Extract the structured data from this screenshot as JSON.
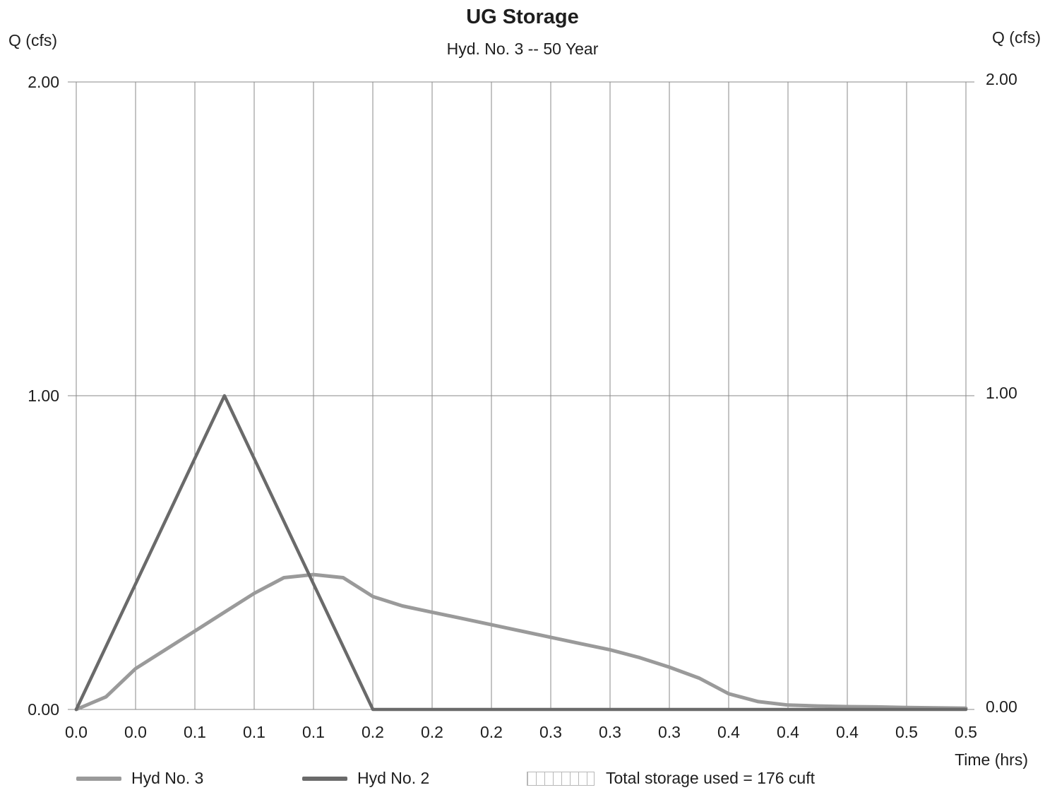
{
  "chart_data": {
    "type": "line",
    "title": "UG Storage",
    "subtitle": "Hyd. No. 3 -- 50 Year",
    "ylabel": "Q (cfs)",
    "ylabel_right": "Q (cfs)",
    "xlabel": "Time (hrs)",
    "ylim": [
      0,
      2
    ],
    "xlim": [
      0,
      0.5
    ],
    "y_ticks": [
      "0.00",
      "1.00",
      "2.00"
    ],
    "x_tick_labels": [
      "0.0",
      "0.0",
      "0.1",
      "0.1",
      "0.1",
      "0.2",
      "0.2",
      "0.2",
      "0.3",
      "0.3",
      "0.3",
      "0.4",
      "0.4",
      "0.4",
      "0.5",
      "0.5"
    ],
    "grid": true,
    "legend_position": "bottom",
    "series": [
      {
        "name": "Hyd No. 3",
        "color": "#9a9a9a",
        "x": [
          0.0,
          0.0167,
          0.0333,
          0.05,
          0.0667,
          0.0833,
          0.1,
          0.1167,
          0.1333,
          0.15,
          0.1667,
          0.1833,
          0.2,
          0.2167,
          0.2333,
          0.25,
          0.2667,
          0.2833,
          0.3,
          0.3167,
          0.3333,
          0.35,
          0.3667,
          0.3833,
          0.4,
          0.4167,
          0.4333,
          0.45,
          0.4667,
          0.4833,
          0.5
        ],
        "y": [
          0.0,
          0.04,
          0.13,
          0.19,
          0.25,
          0.31,
          0.37,
          0.42,
          0.43,
          0.42,
          0.36,
          0.33,
          0.31,
          0.29,
          0.27,
          0.25,
          0.23,
          0.21,
          0.19,
          0.165,
          0.135,
          0.1,
          0.05,
          0.025,
          0.014,
          0.011,
          0.009,
          0.008,
          0.006,
          0.005,
          0.004
        ]
      },
      {
        "name": "Hyd No. 2",
        "color": "#6a6a6a",
        "x": [
          0.0,
          0.0833,
          0.1667,
          0.2,
          0.3,
          0.4,
          0.5
        ],
        "y": [
          0.0,
          1.0,
          0.0,
          0.0,
          0.0,
          0.0,
          0.0
        ]
      }
    ],
    "legend": [
      {
        "label": "Hyd No. 3",
        "color": "#9a9a9a"
      },
      {
        "label": "Hyd No. 2",
        "color": "#6a6a6a"
      },
      {
        "label": "Total storage used = 176 cuft"
      }
    ]
  }
}
